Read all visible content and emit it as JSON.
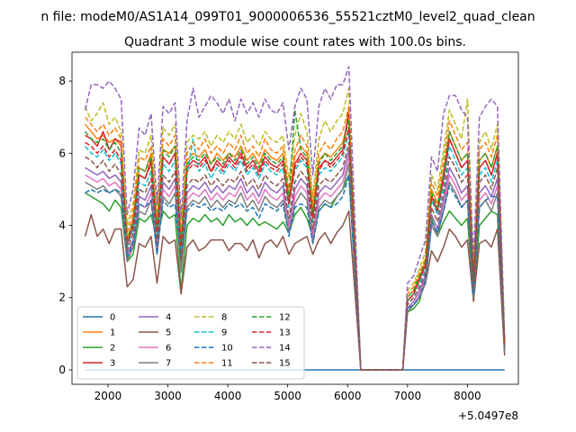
{
  "chart_data": {
    "type": "line",
    "suptitle": "n file: modeM0/AS1A14_099T01_9000006536_55521cztM0_level2_quad_clean",
    "title": "Quadrant 3 module wise count rates with 100.0s bins.",
    "xlabel": "",
    "ylabel": "",
    "x_offset_label": "+5.0497e8",
    "xlim": [
      1400,
      8850
    ],
    "ylim": [
      -0.4,
      8.8
    ],
    "xticks": [
      2000,
      3000,
      4000,
      5000,
      6000,
      7000,
      8000
    ],
    "yticks": [
      0,
      2,
      4,
      6,
      8
    ],
    "grid": false,
    "legend_position": "lower left",
    "x": [
      1620,
      1720,
      1820,
      1920,
      2020,
      2120,
      2220,
      2320,
      2420,
      2520,
      2620,
      2720,
      2820,
      2920,
      3020,
      3120,
      3220,
      3320,
      3420,
      3520,
      3620,
      3720,
      3820,
      3920,
      4020,
      4120,
      4220,
      4320,
      4420,
      4520,
      4620,
      4720,
      4820,
      4920,
      5020,
      5120,
      5220,
      5320,
      5420,
      5520,
      5620,
      5720,
      5820,
      5920,
      6020,
      6220,
      6920,
      7000,
      7100,
      7200,
      7300,
      7400,
      7500,
      7600,
      7700,
      7800,
      7900,
      8000,
      8100,
      8200,
      8300,
      8400,
      8500,
      8620
    ],
    "series": [
      {
        "name": "0",
        "color": "#1f77b4",
        "dash": "solid",
        "values": [
          0,
          0,
          0,
          0,
          0,
          0,
          0,
          0,
          0,
          0,
          0,
          0,
          0,
          0,
          0,
          0,
          0,
          0,
          0,
          0,
          0,
          0,
          0,
          0,
          0,
          0,
          0,
          0,
          0,
          0,
          0,
          0,
          0,
          0,
          0,
          0,
          0,
          0,
          0,
          0,
          0,
          0,
          0,
          0,
          0,
          0,
          0,
          0,
          0,
          0,
          0,
          0,
          0,
          0,
          0,
          0,
          0,
          0,
          0,
          0,
          0,
          0,
          0,
          0
        ]
      },
      {
        "name": "1",
        "color": "#ff7f0e",
        "dash": "solid",
        "values": [
          6.8,
          6.6,
          6.4,
          6.5,
          6.3,
          6.4,
          6.2,
          3.6,
          4.2,
          5.6,
          5.5,
          6.0,
          4.0,
          6.1,
          6.0,
          6.2,
          3.5,
          5.8,
          6.0,
          5.9,
          6.1,
          5.7,
          6.0,
          5.8,
          6.0,
          5.9,
          6.2,
          5.8,
          6.0,
          5.7,
          6.1,
          5.9,
          5.8,
          6.0,
          4.8,
          5.9,
          6.2,
          6.0,
          4.4,
          5.8,
          6.0,
          5.9,
          6.1,
          6.3,
          7.0,
          0,
          0,
          2.0,
          2.2,
          2.6,
          3.0,
          5.0,
          4.6,
          5.5,
          6.6,
          6.2,
          5.8,
          6.0,
          2.6,
          5.8,
          6.0,
          5.6,
          6.2,
          0.7
        ]
      },
      {
        "name": "2",
        "color": "#2ca02c",
        "dash": "solid",
        "values": [
          4.9,
          4.8,
          4.7,
          4.6,
          4.4,
          4.7,
          4.5,
          3.0,
          3.2,
          4.2,
          4.1,
          4.3,
          3.6,
          4.4,
          4.2,
          4.3,
          2.2,
          4.0,
          4.2,
          4.1,
          4.3,
          4.1,
          4.2,
          4.0,
          4.3,
          4.1,
          4.2,
          4.0,
          4.2,
          4.0,
          4.1,
          4.0,
          3.9,
          4.1,
          3.8,
          4.3,
          4.5,
          4.2,
          3.7,
          4.4,
          4.6,
          4.5,
          4.8,
          5.0,
          5.4,
          0,
          0,
          1.6,
          1.7,
          1.9,
          2.6,
          4.2,
          3.7,
          4.1,
          4.4,
          4.2,
          4.0,
          4.2,
          2.0,
          4.0,
          4.2,
          4.4,
          4.3,
          0.5
        ]
      },
      {
        "name": "3",
        "color": "#d62728",
        "dash": "solid",
        "values": [
          6.5,
          6.4,
          6.2,
          6.6,
          6.1,
          6.4,
          6.3,
          3.5,
          4.0,
          5.4,
          5.3,
          5.8,
          3.8,
          5.9,
          5.7,
          6.0,
          3.3,
          5.6,
          5.8,
          5.7,
          5.9,
          5.5,
          5.8,
          5.6,
          5.9,
          5.7,
          6.0,
          5.6,
          5.8,
          5.5,
          5.9,
          5.7,
          5.6,
          5.8,
          4.6,
          5.7,
          6.0,
          5.8,
          4.2,
          5.6,
          5.8,
          5.7,
          5.9,
          6.1,
          7.2,
          0,
          0,
          1.9,
          2.1,
          2.5,
          2.9,
          4.8,
          4.4,
          5.3,
          6.4,
          6.0,
          5.6,
          5.8,
          2.5,
          5.6,
          5.8,
          5.4,
          6.0,
          0.6
        ]
      },
      {
        "name": "4",
        "color": "#9467bd",
        "dash": "solid",
        "values": [
          5.6,
          5.5,
          5.4,
          5.5,
          5.3,
          5.4,
          5.2,
          3.2,
          3.6,
          4.8,
          4.7,
          5.1,
          3.4,
          5.2,
          5.0,
          5.3,
          2.9,
          4.9,
          5.1,
          5.0,
          5.2,
          4.9,
          5.1,
          4.9,
          5.1,
          5.0,
          5.3,
          4.9,
          5.1,
          4.8,
          5.2,
          5.0,
          4.9,
          5.1,
          4.0,
          5.0,
          5.3,
          5.1,
          3.7,
          4.9,
          5.1,
          5.0,
          5.2,
          5.4,
          6.1,
          0,
          0,
          1.7,
          1.9,
          2.2,
          2.6,
          4.3,
          3.9,
          4.7,
          5.6,
          5.3,
          4.9,
          5.1,
          2.2,
          4.9,
          5.1,
          4.8,
          5.3,
          0.6
        ]
      },
      {
        "name": "5",
        "color": "#8c564b",
        "dash": "solid",
        "values": [
          3.7,
          4.3,
          3.7,
          3.9,
          3.5,
          3.9,
          3.9,
          2.3,
          2.5,
          3.5,
          3.4,
          3.7,
          2.4,
          3.7,
          3.5,
          3.6,
          2.1,
          3.4,
          3.6,
          3.3,
          3.4,
          3.6,
          3.6,
          3.6,
          3.3,
          3.5,
          3.5,
          3.3,
          3.6,
          3.1,
          3.5,
          3.6,
          3.4,
          3.7,
          3.2,
          3.5,
          3.6,
          3.7,
          3.2,
          3.6,
          3.8,
          3.5,
          3.8,
          4.0,
          4.4,
          0,
          0,
          1.7,
          1.8,
          2.0,
          2.4,
          3.3,
          3.0,
          3.4,
          3.9,
          3.7,
          3.4,
          3.6,
          1.9,
          3.5,
          3.6,
          3.4,
          3.9,
          0.4
        ]
      },
      {
        "name": "6",
        "color": "#e377c2",
        "dash": "solid",
        "values": [
          5.4,
          5.3,
          5.2,
          5.3,
          5.1,
          5.2,
          5.0,
          3.1,
          3.5,
          4.6,
          4.5,
          4.9,
          3.3,
          5.0,
          4.8,
          5.1,
          2.8,
          4.7,
          4.9,
          4.8,
          5.0,
          4.7,
          4.9,
          4.7,
          4.9,
          4.8,
          5.1,
          4.7,
          4.9,
          4.6,
          5.0,
          4.8,
          4.7,
          4.9,
          3.9,
          4.8,
          5.1,
          4.9,
          3.6,
          4.7,
          4.9,
          4.8,
          5.0,
          5.2,
          5.9,
          0,
          0,
          1.7,
          1.8,
          2.1,
          2.5,
          4.1,
          3.8,
          4.5,
          5.4,
          5.1,
          4.7,
          4.9,
          2.1,
          4.7,
          4.9,
          4.6,
          5.1,
          0.6
        ]
      },
      {
        "name": "7",
        "color": "#7f7f7f",
        "dash": "solid",
        "values": [
          5.2,
          5.1,
          5.0,
          5.1,
          4.9,
          5.0,
          4.8,
          3.0,
          3.4,
          4.4,
          4.3,
          4.7,
          3.2,
          4.8,
          4.6,
          4.9,
          2.7,
          4.5,
          4.7,
          4.6,
          4.8,
          4.5,
          4.7,
          4.5,
          4.7,
          4.6,
          4.9,
          4.5,
          4.7,
          4.4,
          4.8,
          4.6,
          4.5,
          4.7,
          3.8,
          4.6,
          4.9,
          4.7,
          3.5,
          4.5,
          4.7,
          4.6,
          4.8,
          5.0,
          5.7,
          0,
          0,
          1.6,
          1.8,
          2.0,
          2.4,
          4.0,
          3.7,
          4.4,
          5.2,
          4.9,
          4.5,
          4.7,
          2.0,
          4.5,
          4.7,
          4.4,
          4.9,
          0.5
        ]
      },
      {
        "name": "8",
        "color": "#bcbd22",
        "dash": "dashed",
        "values": [
          7.3,
          6.9,
          7.1,
          7.4,
          6.8,
          7.0,
          6.6,
          4.0,
          4.6,
          6.1,
          6.0,
          6.5,
          4.3,
          6.7,
          6.5,
          6.8,
          3.9,
          6.3,
          6.5,
          6.4,
          6.6,
          6.2,
          6.5,
          6.3,
          6.6,
          6.4,
          6.8,
          6.3,
          6.5,
          6.2,
          6.6,
          6.4,
          6.3,
          6.5,
          5.3,
          6.5,
          7.1,
          6.6,
          4.8,
          6.4,
          6.9,
          6.6,
          6.9,
          7.1,
          7.8,
          0,
          0,
          2.2,
          2.4,
          2.8,
          3.3,
          5.4,
          5.0,
          6.1,
          7.2,
          6.8,
          6.4,
          7.5,
          2.9,
          6.3,
          6.6,
          6.1,
          6.8,
          0.8
        ]
      },
      {
        "name": "9",
        "color": "#17becf",
        "dash": "dashed",
        "values": [
          6.2,
          6.0,
          5.9,
          6.1,
          5.8,
          6.0,
          5.7,
          3.4,
          3.9,
          5.2,
          5.1,
          5.5,
          3.7,
          5.7,
          5.5,
          5.8,
          3.2,
          5.4,
          6.4,
          5.5,
          5.7,
          5.3,
          5.6,
          5.4,
          5.7,
          5.5,
          5.8,
          5.4,
          5.6,
          5.3,
          5.7,
          5.5,
          5.4,
          5.6,
          4.5,
          5.5,
          5.8,
          5.6,
          4.1,
          5.4,
          5.6,
          5.5,
          5.7,
          5.9,
          6.6,
          0,
          0,
          1.9,
          2.1,
          2.4,
          2.8,
          4.7,
          4.3,
          5.1,
          6.2,
          5.8,
          5.4,
          5.6,
          2.4,
          5.4,
          5.6,
          5.2,
          5.8,
          0.7
        ]
      },
      {
        "name": "10",
        "color": "#1f77b4",
        "dash": "dashed",
        "values": [
          4.9,
          5.0,
          4.9,
          5.0,
          4.9,
          5.0,
          4.9,
          3.1,
          3.5,
          4.6,
          4.5,
          4.7,
          3.2,
          4.7,
          4.5,
          4.6,
          3.1,
          4.4,
          4.6,
          4.5,
          4.6,
          4.4,
          4.5,
          4.4,
          4.6,
          4.5,
          4.6,
          4.4,
          4.5,
          4.2,
          4.6,
          4.5,
          4.4,
          4.6,
          3.7,
          4.5,
          4.6,
          4.5,
          3.5,
          4.4,
          4.6,
          4.5,
          4.6,
          4.8,
          5.4,
          0,
          0,
          1.7,
          1.8,
          2.0,
          2.5,
          4.1,
          3.8,
          4.4,
          5.1,
          4.8,
          4.5,
          4.7,
          2.1,
          4.5,
          4.7,
          4.8,
          4.8,
          0.6
        ]
      },
      {
        "name": "11",
        "color": "#ff7f0e",
        "dash": "dashed",
        "values": [
          7.0,
          6.8,
          6.6,
          6.8,
          6.5,
          6.7,
          6.4,
          3.8,
          4.4,
          5.9,
          5.8,
          6.2,
          4.1,
          6.4,
          6.2,
          6.5,
          3.7,
          6.0,
          6.3,
          6.1,
          6.4,
          6.0,
          6.2,
          6.0,
          6.3,
          6.1,
          6.5,
          6.0,
          6.2,
          5.9,
          6.4,
          6.1,
          6.0,
          6.2,
          5.0,
          6.1,
          6.5,
          6.2,
          4.6,
          6.0,
          6.3,
          6.1,
          6.4,
          6.6,
          7.3,
          0,
          0,
          2.1,
          2.3,
          2.7,
          3.1,
          5.2,
          4.8,
          5.8,
          6.9,
          6.5,
          6.1,
          6.3,
          2.7,
          6.1,
          6.3,
          5.9,
          6.5,
          0.7
        ]
      },
      {
        "name": "12",
        "color": "#2ca02c",
        "dash": "dashed",
        "values": [
          6.6,
          6.4,
          6.3,
          6.4,
          6.1,
          6.3,
          6.0,
          3.6,
          4.1,
          5.6,
          5.5,
          5.9,
          3.9,
          6.1,
          5.9,
          6.2,
          3.5,
          5.7,
          5.9,
          5.8,
          6.0,
          5.7,
          5.9,
          5.7,
          6.0,
          5.8,
          6.1,
          5.7,
          5.9,
          5.6,
          6.0,
          5.8,
          5.7,
          5.9,
          4.8,
          7.2,
          6.1,
          5.9,
          4.3,
          5.7,
          6.0,
          5.8,
          6.0,
          6.2,
          6.9,
          0,
          0,
          2.0,
          2.2,
          2.6,
          3.0,
          4.9,
          4.5,
          5.5,
          6.6,
          6.2,
          5.8,
          6.0,
          2.6,
          5.8,
          6.0,
          5.6,
          6.2,
          0.7
        ]
      },
      {
        "name": "13",
        "color": "#d62728",
        "dash": "dashed",
        "values": [
          6.3,
          6.2,
          6.0,
          6.2,
          5.9,
          6.1,
          5.8,
          3.5,
          4.0,
          5.4,
          5.3,
          5.7,
          3.8,
          5.9,
          5.7,
          6.0,
          3.4,
          5.5,
          5.7,
          5.6,
          5.8,
          5.5,
          5.7,
          5.5,
          5.8,
          5.6,
          5.9,
          5.5,
          5.7,
          5.4,
          5.8,
          5.6,
          5.5,
          5.7,
          4.6,
          5.6,
          5.9,
          5.7,
          4.2,
          5.5,
          5.8,
          5.6,
          5.8,
          6.0,
          6.7,
          0,
          0,
          1.9,
          2.1,
          2.5,
          2.9,
          4.8,
          4.4,
          5.3,
          6.4,
          6.0,
          5.6,
          5.8,
          2.5,
          5.6,
          5.8,
          5.4,
          6.0,
          0.7
        ]
      },
      {
        "name": "14",
        "color": "#9467bd",
        "dash": "dashed",
        "values": [
          7.2,
          7.9,
          7.9,
          7.8,
          8.0,
          7.8,
          7.5,
          4.3,
          5.0,
          6.7,
          6.5,
          7.1,
          4.6,
          7.3,
          7.1,
          7.4,
          4.2,
          6.9,
          7.8,
          7.0,
          7.3,
          7.6,
          7.4,
          7.1,
          7.5,
          6.9,
          7.5,
          7.1,
          7.4,
          7.0,
          7.5,
          7.2,
          7.1,
          7.4,
          6.1,
          7.3,
          7.8,
          7.5,
          5.4,
          7.3,
          7.8,
          7.5,
          7.9,
          7.9,
          8.4,
          0,
          0,
          2.4,
          2.6,
          3.1,
          3.6,
          5.9,
          5.5,
          7.1,
          7.6,
          7.6,
          7.2,
          7.0,
          3.1,
          7.0,
          7.3,
          7.5,
          7.3,
          0.9
        ]
      },
      {
        "name": "15",
        "color": "#8c564b",
        "dash": "dashed",
        "values": [
          5.9,
          5.8,
          5.6,
          5.8,
          5.5,
          5.7,
          5.4,
          3.3,
          3.8,
          5.0,
          4.9,
          5.3,
          3.5,
          5.4,
          5.2,
          5.5,
          3.0,
          5.1,
          5.3,
          5.2,
          5.4,
          5.1,
          5.3,
          5.1,
          5.3,
          5.2,
          5.5,
          5.1,
          5.3,
          5.0,
          5.4,
          5.2,
          5.1,
          5.3,
          4.2,
          5.2,
          5.5,
          5.3,
          3.9,
          5.1,
          5.3,
          5.2,
          5.4,
          5.6,
          6.3,
          0,
          0,
          1.8,
          2.0,
          2.3,
          2.7,
          4.5,
          4.1,
          4.9,
          5.9,
          5.6,
          5.2,
          5.4,
          2.3,
          5.2,
          5.4,
          5.0,
          5.6,
          0.6
        ]
      }
    ]
  }
}
